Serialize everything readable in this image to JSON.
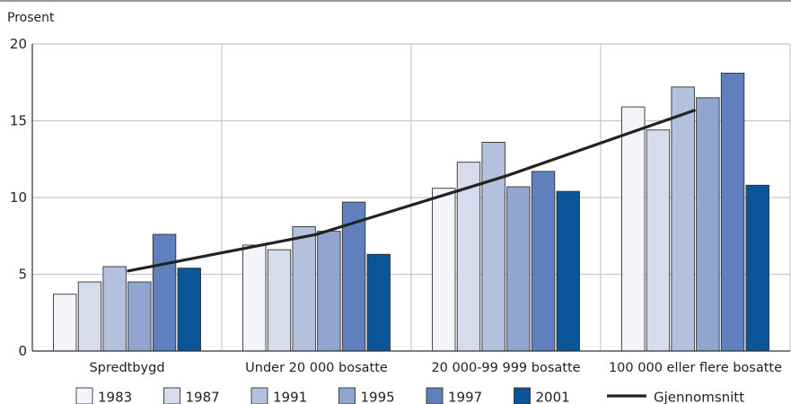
{
  "chart_data": {
    "type": "bar",
    "ylabel": "Prosent",
    "ylim": [
      0,
      20
    ],
    "yticks": [
      0,
      5,
      10,
      15,
      20
    ],
    "grid": true,
    "legend_position": "bottom",
    "categories": [
      "Spredtbygd",
      "Under 20 000 bosatte",
      "20 000-99 999 bosatte",
      "100 000 eller flere bosatte"
    ],
    "series": [
      {
        "name": "1983",
        "color": "#f4f5fa",
        "values": [
          3.7,
          6.9,
          10.6,
          15.9
        ]
      },
      {
        "name": "1987",
        "color": "#d6dcec",
        "values": [
          4.5,
          6.6,
          12.3,
          14.4
        ]
      },
      {
        "name": "1991",
        "color": "#b3c1de",
        "values": [
          5.5,
          8.1,
          13.6,
          17.2
        ]
      },
      {
        "name": "1995",
        "color": "#91a5cf",
        "values": [
          4.5,
          7.8,
          10.7,
          16.5
        ]
      },
      {
        "name": "1997",
        "color": "#5f80bc",
        "values": [
          7.6,
          9.7,
          11.7,
          18.1
        ]
      },
      {
        "name": "2001",
        "color": "#0a5597",
        "values": [
          5.4,
          6.3,
          10.4,
          10.8
        ]
      }
    ],
    "line": {
      "name": "Gjennomsnitt",
      "color": "#222222",
      "values": [
        5.2,
        7.6,
        11.4,
        15.7
      ]
    }
  }
}
